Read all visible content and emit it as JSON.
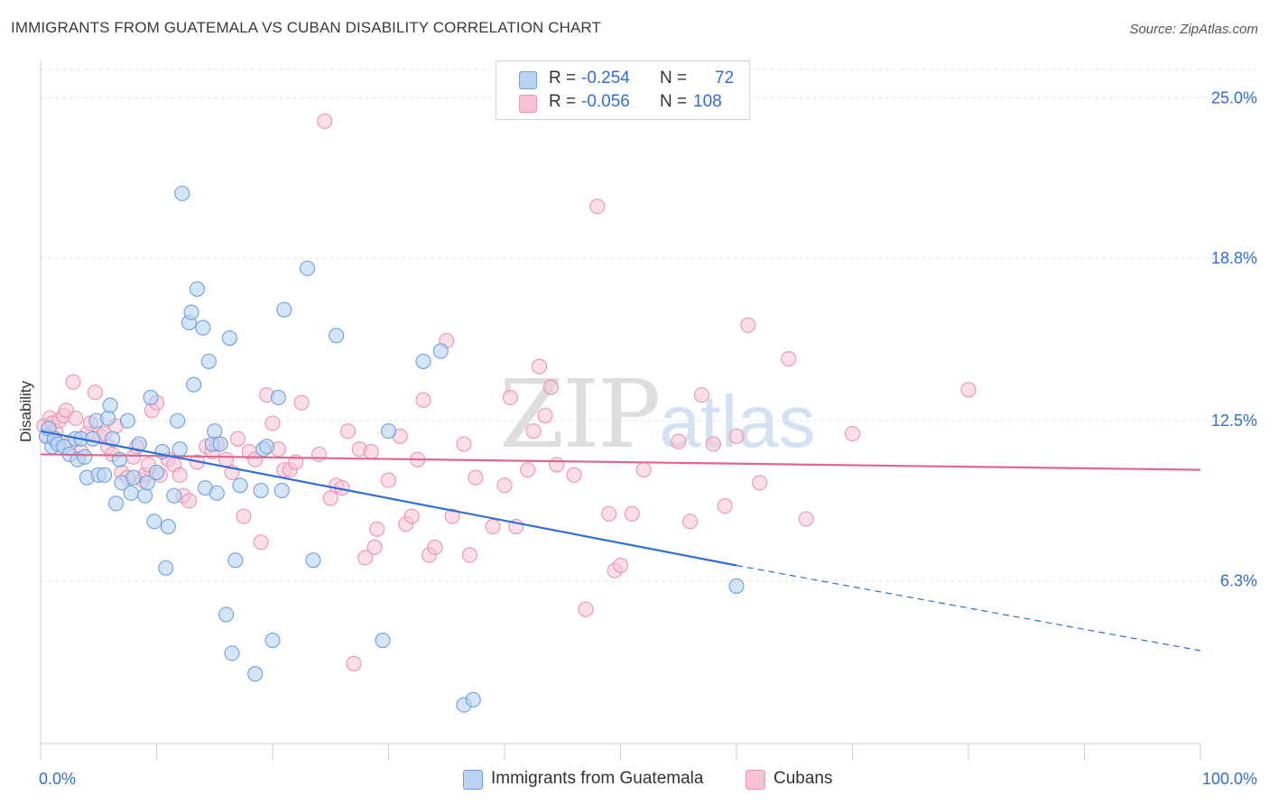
{
  "title": "IMMIGRANTS FROM GUATEMALA VS CUBAN DISABILITY CORRELATION CHART",
  "source": "Source: ZipAtlas.com",
  "watermark": {
    "zip": "ZIP",
    "atlas": "atlas"
  },
  "colors": {
    "blue_fill": "#b9d3f3",
    "blue_stroke": "#6f9fde",
    "blue_line": "#2f6fd6",
    "pink_fill": "#f7c3d3",
    "pink_stroke": "#e995b2",
    "pink_line": "#e0668f",
    "grid": "#e2e2e2",
    "tick_label": "#2f6fd6"
  },
  "legend": {
    "rows": [
      {
        "r_label": "R =",
        "r_value": "-0.254",
        "n_label": "N =",
        "n_value": "72"
      },
      {
        "r_label": "R =",
        "r_value": "-0.056",
        "n_label": "N =",
        "n_value": "108"
      }
    ]
  },
  "bottom_legend": {
    "series1": "Immigrants from Guatemala",
    "series2": "Cubans"
  },
  "chart_data": {
    "type": "scatter",
    "xlabel": "",
    "ylabel": "Disability",
    "xlim": [
      0,
      100
    ],
    "ylim": [
      0,
      26.1
    ],
    "x_tick_labels": [
      "0.0%",
      "100.0%"
    ],
    "y_ticks": [
      6.3,
      12.5,
      18.8,
      25.0
    ],
    "y_tick_labels": [
      "6.3%",
      "12.5%",
      "18.8%",
      "25.0%"
    ],
    "grid": true,
    "legend_position": "top-center",
    "series": [
      {
        "name": "Immigrants from Guatemala",
        "color": "#6f9fde",
        "trend": {
          "x0": 0,
          "y0": 12.1,
          "x1": 60,
          "y1": 6.9,
          "dashed_to_x": 100,
          "dashed_to_y": 3.6
        },
        "points": [
          [
            0.5,
            11.9
          ],
          [
            0.7,
            12.2
          ],
          [
            1.0,
            11.5
          ],
          [
            1.2,
            11.8
          ],
          [
            1.5,
            11.6
          ],
          [
            2.0,
            11.5
          ],
          [
            2.5,
            11.2
          ],
          [
            3.0,
            11.8
          ],
          [
            3.2,
            11.0
          ],
          [
            3.5,
            11.8
          ],
          [
            3.8,
            11.1
          ],
          [
            4.0,
            10.3
          ],
          [
            4.5,
            11.8
          ],
          [
            4.8,
            12.5
          ],
          [
            5.0,
            10.4
          ],
          [
            5.5,
            10.4
          ],
          [
            5.8,
            12.6
          ],
          [
            6.0,
            13.1
          ],
          [
            6.2,
            11.8
          ],
          [
            6.5,
            9.3
          ],
          [
            6.8,
            11.0
          ],
          [
            7.0,
            10.1
          ],
          [
            7.5,
            12.5
          ],
          [
            7.8,
            9.7
          ],
          [
            8.0,
            10.3
          ],
          [
            8.5,
            11.6
          ],
          [
            9.0,
            9.6
          ],
          [
            9.2,
            10.1
          ],
          [
            9.5,
            13.4
          ],
          [
            9.8,
            8.6
          ],
          [
            10.0,
            10.5
          ],
          [
            10.5,
            11.3
          ],
          [
            10.8,
            6.8
          ],
          [
            11.0,
            8.4
          ],
          [
            11.5,
            9.6
          ],
          [
            11.8,
            12.5
          ],
          [
            12.2,
            21.3
          ],
          [
            12.8,
            16.3
          ],
          [
            13.0,
            16.7
          ],
          [
            13.2,
            13.9
          ],
          [
            13.5,
            17.6
          ],
          [
            14.0,
            16.1
          ],
          [
            14.2,
            9.9
          ],
          [
            14.5,
            14.8
          ],
          [
            14.8,
            11.6
          ],
          [
            15.0,
            12.1
          ],
          [
            15.2,
            9.7
          ],
          [
            15.5,
            11.6
          ],
          [
            16.0,
            5.0
          ],
          [
            16.3,
            15.7
          ],
          [
            16.5,
            3.5
          ],
          [
            16.8,
            7.1
          ],
          [
            17.2,
            10.0
          ],
          [
            18.5,
            2.7
          ],
          [
            19.0,
            9.8
          ],
          [
            19.2,
            11.4
          ],
          [
            19.5,
            11.5
          ],
          [
            20.0,
            4.0
          ],
          [
            20.5,
            13.4
          ],
          [
            21.0,
            16.8
          ],
          [
            20.8,
            9.8
          ],
          [
            23.0,
            18.4
          ],
          [
            23.5,
            7.1
          ],
          [
            25.5,
            15.8
          ],
          [
            29.5,
            4.0
          ],
          [
            30.0,
            12.1
          ],
          [
            33.0,
            14.8
          ],
          [
            34.5,
            15.2
          ],
          [
            36.5,
            1.5
          ],
          [
            37.3,
            1.7
          ],
          [
            60.0,
            6.1
          ],
          [
            12.0,
            11.4
          ]
        ]
      },
      {
        "name": "Cubans",
        "color": "#e995b2",
        "trend": {
          "x0": 0,
          "y0": 11.2,
          "x1": 100,
          "y1": 10.6
        },
        "points": [
          [
            0.3,
            12.3
          ],
          [
            0.5,
            11.9
          ],
          [
            0.8,
            12.6
          ],
          [
            1.0,
            12.4
          ],
          [
            1.3,
            12.1
          ],
          [
            1.6,
            12.5
          ],
          [
            2.0,
            12.7
          ],
          [
            2.2,
            12.9
          ],
          [
            2.5,
            11.6
          ],
          [
            2.8,
            14.0
          ],
          [
            3.0,
            12.6
          ],
          [
            3.5,
            11.3
          ],
          [
            4.0,
            12.0
          ],
          [
            4.3,
            12.4
          ],
          [
            4.7,
            13.6
          ],
          [
            5.2,
            11.9
          ],
          [
            5.5,
            12.0
          ],
          [
            5.8,
            11.5
          ],
          [
            6.2,
            11.2
          ],
          [
            6.5,
            12.3
          ],
          [
            7.0,
            10.5
          ],
          [
            7.5,
            10.3
          ],
          [
            8.0,
            11.1
          ],
          [
            8.3,
            11.5
          ],
          [
            8.8,
            10.2
          ],
          [
            9.0,
            10.4
          ],
          [
            9.3,
            10.8
          ],
          [
            9.6,
            12.9
          ],
          [
            10.0,
            13.2
          ],
          [
            10.3,
            10.4
          ],
          [
            11.0,
            11.0
          ],
          [
            11.5,
            10.8
          ],
          [
            12.0,
            10.4
          ],
          [
            12.3,
            9.6
          ],
          [
            12.8,
            9.4
          ],
          [
            13.5,
            10.9
          ],
          [
            14.3,
            11.5
          ],
          [
            14.8,
            11.3
          ],
          [
            15.2,
            11.6
          ],
          [
            16.0,
            11.0
          ],
          [
            16.5,
            10.5
          ],
          [
            17.0,
            11.8
          ],
          [
            17.5,
            8.8
          ],
          [
            18.0,
            11.3
          ],
          [
            18.5,
            11.0
          ],
          [
            19.0,
            7.8
          ],
          [
            19.5,
            13.5
          ],
          [
            20.0,
            12.4
          ],
          [
            20.5,
            11.4
          ],
          [
            21.0,
            10.6
          ],
          [
            21.5,
            10.6
          ],
          [
            22.0,
            10.9
          ],
          [
            22.5,
            13.2
          ],
          [
            24.0,
            11.2
          ],
          [
            24.5,
            24.1
          ],
          [
            25.0,
            9.5
          ],
          [
            25.5,
            10.0
          ],
          [
            26.0,
            9.9
          ],
          [
            26.5,
            12.1
          ],
          [
            27.0,
            3.1
          ],
          [
            27.5,
            11.4
          ],
          [
            28.0,
            7.2
          ],
          [
            28.5,
            11.3
          ],
          [
            28.8,
            7.6
          ],
          [
            29.0,
            8.3
          ],
          [
            30.0,
            10.2
          ],
          [
            31.0,
            11.9
          ],
          [
            31.5,
            8.5
          ],
          [
            32.0,
            8.8
          ],
          [
            32.5,
            11.0
          ],
          [
            33.0,
            13.3
          ],
          [
            33.5,
            7.3
          ],
          [
            34.0,
            7.6
          ],
          [
            35.0,
            15.6
          ],
          [
            35.5,
            8.8
          ],
          [
            36.5,
            11.6
          ],
          [
            37.0,
            7.3
          ],
          [
            37.5,
            10.3
          ],
          [
            39.0,
            8.4
          ],
          [
            40.0,
            10.0
          ],
          [
            40.5,
            13.4
          ],
          [
            41.0,
            8.4
          ],
          [
            42.0,
            10.6
          ],
          [
            42.5,
            12.1
          ],
          [
            43.0,
            14.6
          ],
          [
            43.5,
            12.7
          ],
          [
            44.0,
            13.8
          ],
          [
            44.5,
            10.8
          ],
          [
            46.0,
            10.4
          ],
          [
            47.0,
            5.2
          ],
          [
            48.0,
            20.8
          ],
          [
            49.0,
            8.9
          ],
          [
            49.5,
            6.7
          ],
          [
            50.0,
            6.9
          ],
          [
            51.0,
            8.9
          ],
          [
            52.0,
            10.6
          ],
          [
            55.0,
            11.7
          ],
          [
            56.0,
            8.6
          ],
          [
            57.0,
            13.5
          ],
          [
            58.0,
            11.6
          ],
          [
            59.0,
            9.2
          ],
          [
            60.0,
            11.9
          ],
          [
            61.0,
            16.2
          ],
          [
            62.0,
            10.1
          ],
          [
            64.5,
            14.9
          ],
          [
            66.0,
            8.7
          ],
          [
            70.0,
            12.0
          ],
          [
            80.0,
            13.7
          ]
        ]
      }
    ]
  }
}
